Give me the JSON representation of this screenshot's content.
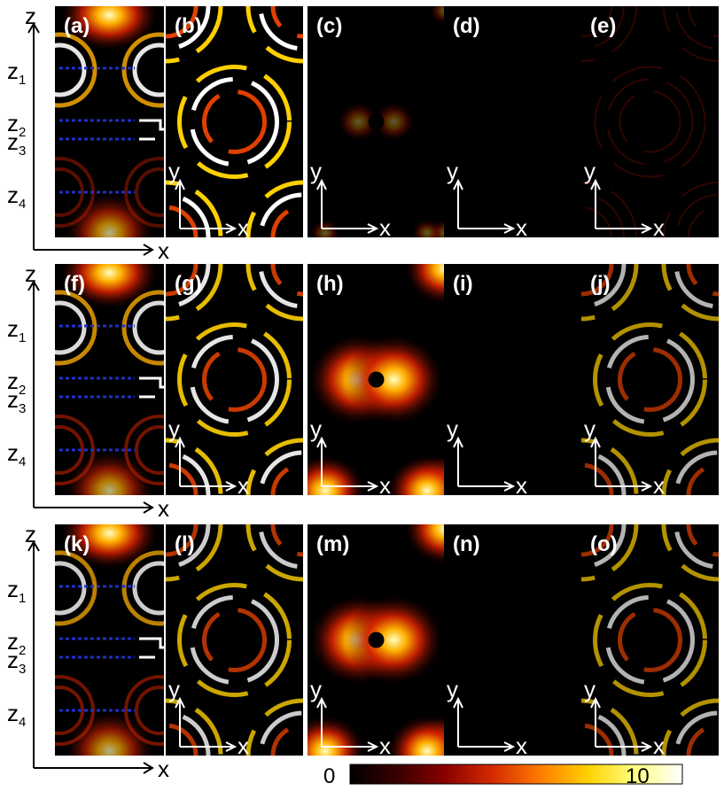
{
  "rows": [
    {
      "side_panel": {
        "label": "(a)",
        "intensity": 0.9,
        "bottom_intensity": 0.45
      },
      "panels": [
        {
          "label": "(b)",
          "kind": "rings",
          "intensity": 1.0,
          "outer_x": "x",
          "outer_y": "y"
        },
        {
          "label": "(c)",
          "kind": "dipole",
          "intensity": 0.3,
          "outer_x": "x",
          "outer_y": "y"
        },
        {
          "label": "(d)",
          "kind": "empty",
          "intensity": 0.0,
          "outer_x": "x",
          "outer_y": "y"
        },
        {
          "label": "(e)",
          "kind": "faint-rings",
          "intensity": 0.25,
          "outer_x": "x",
          "outer_y": "y"
        }
      ]
    },
    {
      "side_panel": {
        "label": "(f)",
        "intensity": 0.85,
        "bottom_intensity": 0.6
      },
      "panels": [
        {
          "label": "(g)",
          "kind": "rings",
          "intensity": 0.9,
          "outer_x": "x",
          "outer_y": "y"
        },
        {
          "label": "(h)",
          "kind": "dipole",
          "intensity": 1.0,
          "outer_x": "x",
          "outer_y": "y"
        },
        {
          "label": "(i)",
          "kind": "empty",
          "intensity": 0.0,
          "outer_x": "x",
          "outer_y": "y"
        },
        {
          "label": "(j)",
          "kind": "rings",
          "intensity": 0.7,
          "outer_x": "x",
          "outer_y": "y"
        }
      ]
    },
    {
      "side_panel": {
        "label": "(k)",
        "intensity": 0.8,
        "bottom_intensity": 0.6
      },
      "panels": [
        {
          "label": "(l)",
          "kind": "rings",
          "intensity": 0.8,
          "outer_x": "x",
          "outer_y": "y"
        },
        {
          "label": "(m)",
          "kind": "dipole",
          "intensity": 1.0,
          "outer_x": "x",
          "outer_y": "y"
        },
        {
          "label": "(n)",
          "kind": "empty",
          "intensity": 0.0,
          "outer_x": "x",
          "outer_y": "y"
        },
        {
          "label": "(o)",
          "kind": "rings",
          "intensity": 0.7,
          "outer_x": "x",
          "outer_y": "y"
        }
      ]
    }
  ],
  "side_axes": {
    "vertical": "z",
    "horizontal": "x"
  },
  "z_levels": [
    {
      "label": "z",
      "sub": "1"
    },
    {
      "label": "z",
      "sub": "2"
    },
    {
      "label": "z",
      "sub": "3"
    },
    {
      "label": "z",
      "sub": "4"
    }
  ],
  "colorbar": {
    "min": "0",
    "max": "10",
    "colormap": [
      "#000000",
      "#3a0000",
      "#8a0000",
      "#d42a00",
      "#ff7a00",
      "#ffd000",
      "#ffff80",
      "#ffffff"
    ]
  },
  "colors": {
    "background": "#ffffff",
    "dash": "#2030c0",
    "panel_bg": "#000000"
  }
}
